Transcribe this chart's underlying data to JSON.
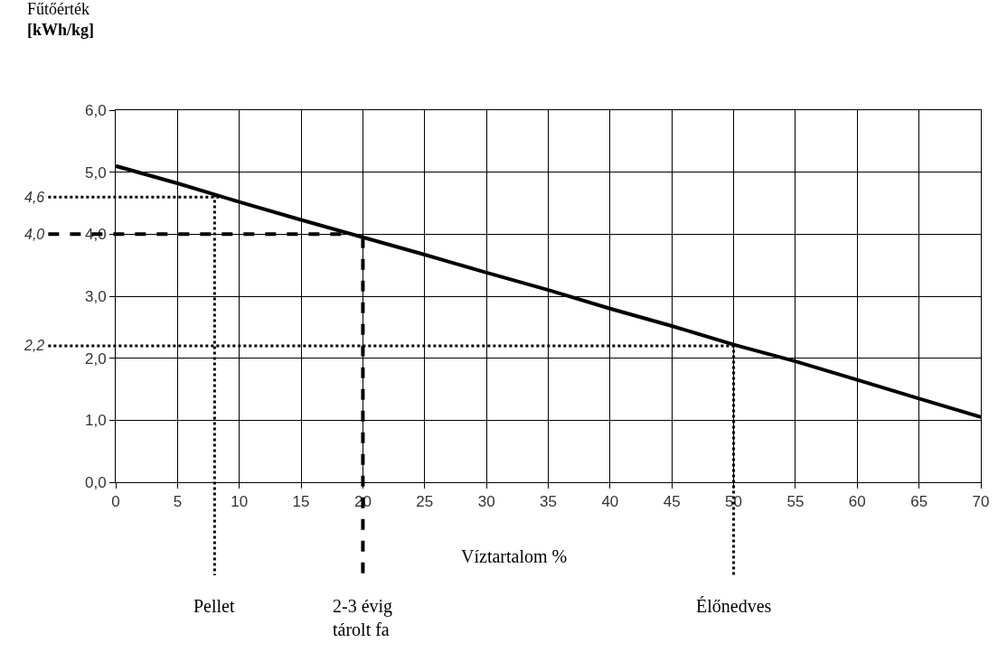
{
  "chart_data": {
    "type": "line",
    "xlabel": "Víztartalom %",
    "ylabel": "Fűtőérték\n[kWh/kg]",
    "x": [
      0,
      5,
      10,
      15,
      20,
      25,
      30,
      35,
      40,
      45,
      50,
      55,
      60,
      65,
      70
    ],
    "series": [
      {
        "color": "#000000",
        "values": [
          5.1,
          4.82,
          4.52,
          4.23,
          3.95,
          3.67,
          3.38,
          3.1,
          2.8,
          2.52,
          2.22,
          1.95,
          1.65,
          1.35,
          1.05
        ]
      }
    ],
    "xlim": [
      0,
      70
    ],
    "xticks": [
      0,
      5,
      10,
      15,
      20,
      25,
      30,
      35,
      40,
      45,
      50,
      55,
      60,
      65,
      70
    ],
    "ylim": [
      0,
      6
    ],
    "yticks": [
      {
        "value": 0,
        "label": "0,0"
      },
      {
        "value": 1,
        "label": "1,0"
      },
      {
        "value": 2,
        "label": "2,0"
      },
      {
        "value": 3,
        "label": "3,0"
      },
      {
        "value": 4,
        "label": "4,0"
      },
      {
        "value": 5,
        "label": "5,0"
      },
      {
        "value": 6,
        "label": "6,0"
      }
    ],
    "grid": true,
    "marker": "none",
    "line_style": "solid",
    "ref_lines": [
      {
        "axis": "y",
        "value": 4.6,
        "label": "4,6",
        "color": "#000000",
        "line_style": "dotted"
      },
      {
        "axis": "y",
        "value": 4.0,
        "label": "4,0",
        "color": "#000000",
        "line_style": "dashed"
      },
      {
        "axis": "y",
        "value": 2.2,
        "label": "2,2",
        "color": "#000000",
        "line_style": "dotted"
      },
      {
        "axis": "x",
        "value": 8,
        "label": "Pellet",
        "color": "#000000",
        "line_style": "dotted"
      },
      {
        "axis": "x",
        "value": 20,
        "label": "2-3 évig\ntárolt fa",
        "color": "#000000",
        "line_style": "dashed"
      },
      {
        "axis": "x",
        "value": 50,
        "label": "Élőnedves",
        "color": "#000000",
        "line_style": "dotted"
      }
    ]
  }
}
